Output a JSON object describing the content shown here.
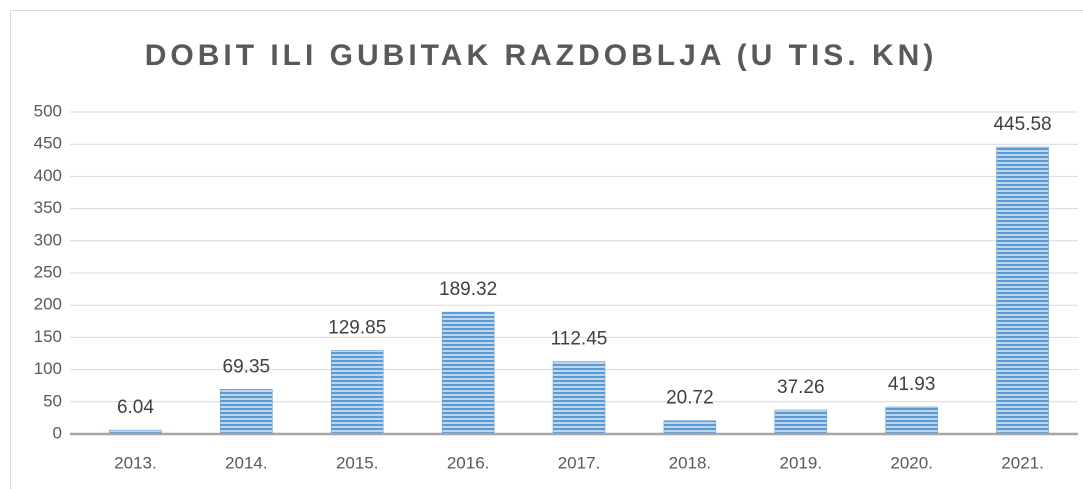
{
  "chart_data": {
    "type": "bar",
    "title": "DOBIT ILI GUBITAK RAZDOBLJA (U TIS. KN)",
    "categories": [
      "2013.",
      "2014.",
      "2015.",
      "2016.",
      "2017.",
      "2018.",
      "2019.",
      "2020.",
      "2021."
    ],
    "values": [
      6.04,
      69.35,
      129.85,
      189.32,
      112.45,
      20.72,
      37.26,
      41.93,
      445.58
    ],
    "color": "#5b9bd5",
    "ylim": [
      0,
      500
    ],
    "yticks": [
      0,
      50,
      100,
      150,
      200,
      250,
      300,
      350,
      400,
      450,
      500
    ],
    "grid": true
  }
}
